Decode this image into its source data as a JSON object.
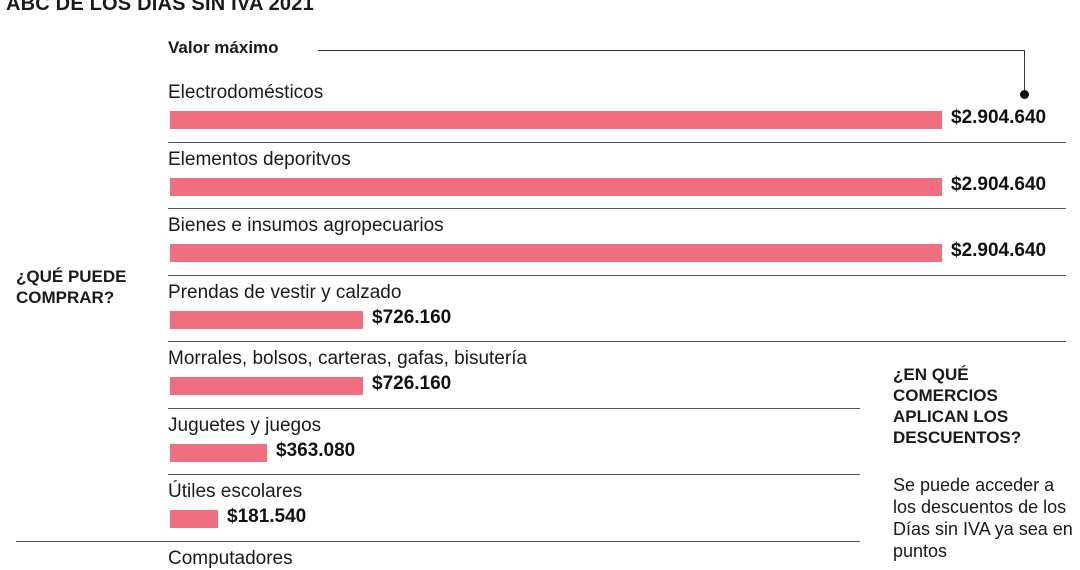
{
  "title": "ABC DE LOS DÍAS SIN IVA 2021",
  "side_question": "¿QUÉ PUEDE COMPRAR?",
  "legend_label": "Valor máximo",
  "right_panel": {
    "question": "¿EN QUÉ COMERCIOS APLICAN LOS DESCUENTOS?",
    "answer": "Se puede acceder a los descuentos de los Días sin IVA ya sea en puntos"
  },
  "colors": {
    "bar": "#ef6f80"
  },
  "chart_data": {
    "type": "bar",
    "orientation": "horizontal",
    "title": "ABC DE LOS DÍAS SIN IVA 2021",
    "series": [
      {
        "name": "Valor máximo"
      }
    ],
    "categories": [
      "Electrodomésticos",
      "Elementos deporitvos",
      "Bienes e insumos agropecuarios",
      "Prendas de vestir y calzado",
      "Morrales, bolsos, carteras, gafas, bisutería",
      "Juguetes y juegos",
      "Útiles escolares",
      "Computadores"
    ],
    "values": [
      2904640,
      2904640,
      2904640,
      726160,
      726160,
      363080,
      181540,
      null
    ],
    "value_labels": [
      "$2.904.640",
      "$2.904.640",
      "$2.904.640",
      "$726.160",
      "$726.160",
      "$363.080",
      "$181.540",
      ""
    ],
    "xlim": [
      0,
      2904640
    ]
  }
}
